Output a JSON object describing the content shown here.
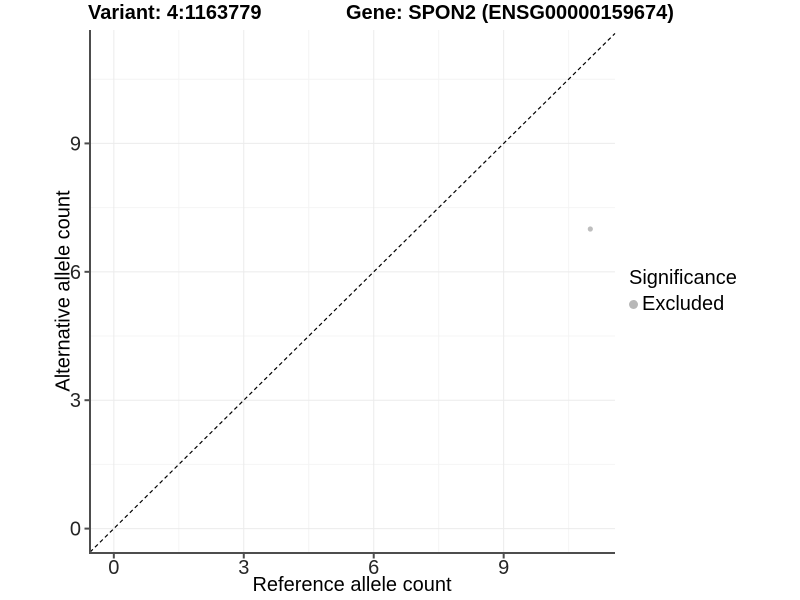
{
  "chart_data": {
    "type": "scatter",
    "title_left": "Variant: 4:1163779",
    "title_right": "Gene: SPON2 (ENSG00000159674)",
    "xlabel": "Reference allele count",
    "ylabel": "Alternative allele count",
    "xlim": [
      -0.55,
      11.57
    ],
    "ylim": [
      -0.57,
      11.65
    ],
    "x_ticks": [
      0,
      3,
      6,
      9
    ],
    "y_ticks": [
      0,
      3,
      6,
      9
    ],
    "x_minor_ticks": [
      1.5,
      4.5,
      7.5,
      10.5
    ],
    "y_minor_ticks": [
      1.5,
      4.5,
      7.5,
      10.5
    ],
    "grid": "major and minor gridlines on white background",
    "series": [
      {
        "name": "Excluded",
        "color": "#bebebe",
        "points": [
          {
            "x": 11,
            "y": 7
          }
        ]
      }
    ],
    "reference_line": {
      "type": "identity y=x",
      "style": "dashed",
      "color": "#000000"
    },
    "legend": {
      "title": "Significance",
      "position": "right",
      "items": [
        {
          "label": "Excluded",
          "color": "#b8b8b8"
        }
      ]
    }
  },
  "colors": {
    "background": "#ffffff",
    "grid_major": "#ebebeb",
    "grid_minor": "#f4f4f4",
    "axis_line": "#4d4d4d",
    "tick_label": "#262626",
    "point": "#bebebe",
    "dashed_line": "#000000"
  }
}
